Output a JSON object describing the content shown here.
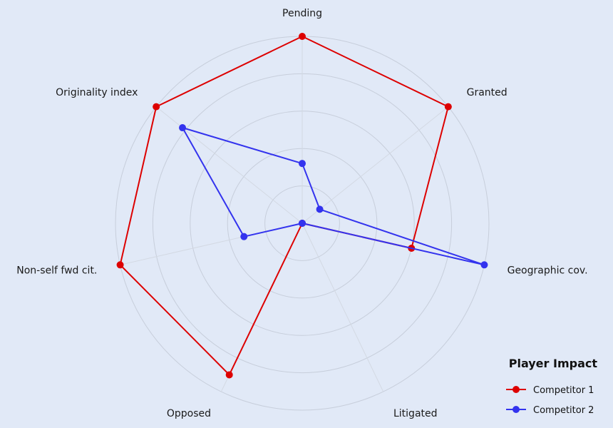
{
  "chart_data": {
    "type": "radar",
    "axes": [
      "Pending",
      "Granted",
      "Geographic cov.",
      "Litigated",
      "Opposed",
      "Non-self fwd cit.",
      "Originality index"
    ],
    "range": [
      0,
      5
    ],
    "gridlines": 5,
    "series": [
      {
        "name": "Competitor 1",
        "values": [
          5,
          5,
          3,
          0,
          4.5,
          5,
          5
        ],
        "color": "#dd0000"
      },
      {
        "name": "Competitor 2",
        "values": [
          1.6,
          0.6,
          5,
          0,
          0,
          1.6,
          4.1
        ],
        "color": "#3333ee"
      }
    ],
    "legend": {
      "title": "Player Impact",
      "position": "bottom-right"
    }
  }
}
